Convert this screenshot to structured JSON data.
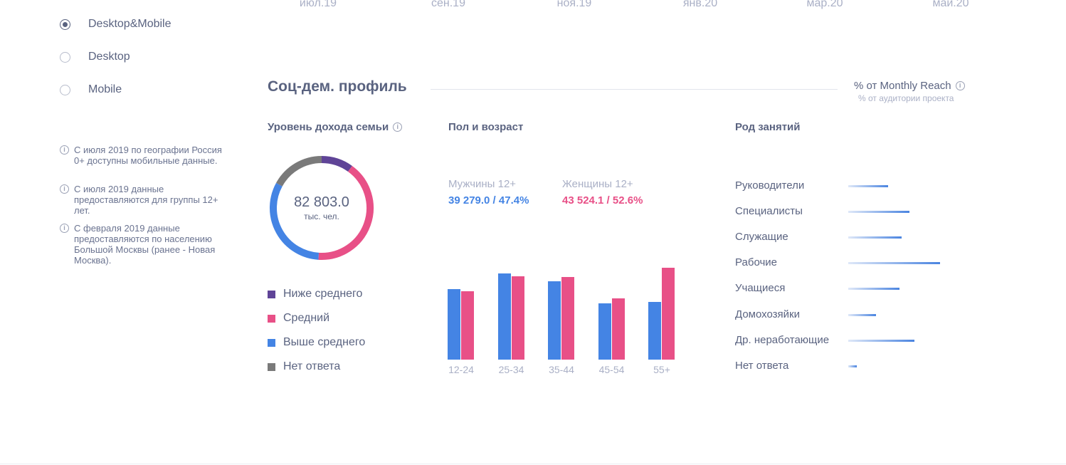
{
  "timeline_months": [
    "июл.19",
    "сен.19",
    "ноя.19",
    "янв.20",
    "мар.20",
    "май.20"
  ],
  "platform_options": [
    {
      "label": "Desktop&Mobile",
      "selected": true
    },
    {
      "label": "Desktop",
      "selected": false
    },
    {
      "label": "Mobile",
      "selected": false
    }
  ],
  "notes": [
    "С июля 2019 по географии Россия 0+ доступны мобильные данные.",
    "С июля 2019 данные предоставляются для группы 12+ лет.",
    "С февраля 2019 данные предоставляются по населению Большой Москвы (ранее - Новая Москва)."
  ],
  "section": {
    "title": "Соц-дем. профиль",
    "metric": "% от Monthly Reach",
    "metric_sub": "% от аудитории проекта"
  },
  "colors": {
    "purple": "#5f4497",
    "pink": "#e85087",
    "blue": "#4484e4",
    "gray": "#7a7a7a"
  },
  "chart_data": [
    {
      "type": "pie",
      "title": "Уровень дохода семьи",
      "center_value": "82 803.0",
      "center_unit": "тыс. чел.",
      "categories": [
        "Ниже среднего",
        "Средний",
        "Выше среднего",
        "Нет ответа"
      ],
      "values": [
        10,
        41,
        32,
        17
      ]
    },
    {
      "type": "bar",
      "title": "Пол и возраст",
      "men_label": "Мужчины 12+",
      "men_value": "39 279.0 / 47.4%",
      "women_label": "Женщины 12+",
      "women_value": "43 524.1 / 52.6%",
      "categories": [
        "12-24",
        "25-34",
        "35-44",
        "45-54",
        "55+"
      ],
      "series": [
        {
          "name": "Мужчины 12+",
          "values": [
            99,
            121,
            110,
            79,
            81
          ]
        },
        {
          "name": "Женщины 12+",
          "values": [
            96,
            117,
            116,
            86,
            129
          ]
        }
      ]
    },
    {
      "type": "bar",
      "title": "Род занятий",
      "categories": [
        "Руководители",
        "Специалисты",
        "Служащие",
        "Рабочие",
        "Учащиеся",
        "Домохозяйки",
        "Др. неработающие",
        "Нет ответа"
      ],
      "values": [
        56,
        86,
        75,
        129,
        72,
        39,
        93,
        12
      ]
    }
  ]
}
